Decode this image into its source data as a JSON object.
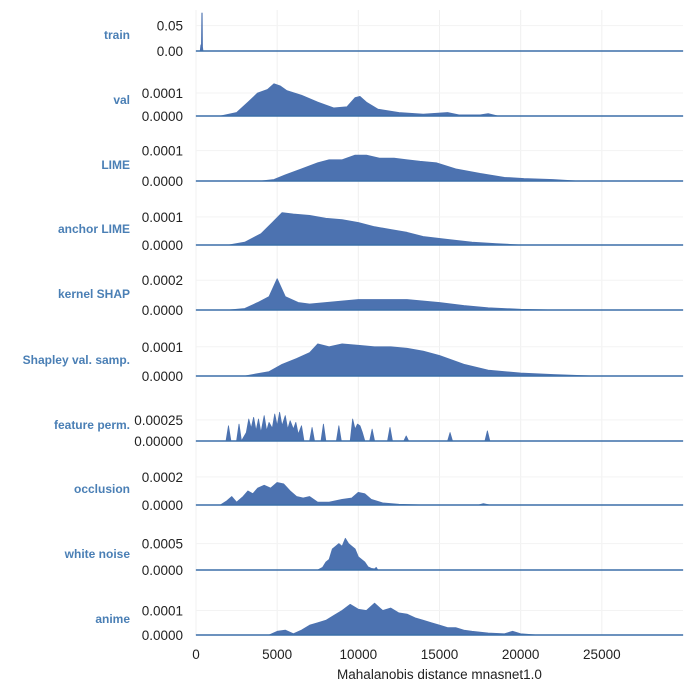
{
  "chart_data": {
    "type": "area",
    "xlabel": "Mahalanobis distance mnasnet1.0",
    "xlim": [
      0,
      30000
    ],
    "x_ticks": [
      "0",
      "5000",
      "10000",
      "15000",
      "20000",
      "25000"
    ],
    "fill_color": "#4c72b0",
    "label_color": "#4a7fb5",
    "grid": true,
    "series": [
      {
        "name": "train",
        "yticks": [
          "0.05",
          "0.00"
        ],
        "ymax": 0.075,
        "points": [
          [
            0,
            0
          ],
          [
            260,
            0
          ],
          [
            300,
            0.012
          ],
          [
            330,
            0
          ],
          [
            360,
            0.075
          ],
          [
            380,
            0.075
          ],
          [
            400,
            0.008
          ],
          [
            430,
            0
          ],
          [
            30000,
            0
          ]
        ]
      },
      {
        "name": "val",
        "yticks": [
          "0.0001",
          "0.0000"
        ],
        "ymax": 0.000165,
        "points": [
          [
            0,
            0
          ],
          [
            1500,
            0
          ],
          [
            2500,
            1.5e-05
          ],
          [
            3200,
            6e-05
          ],
          [
            3800,
            0.0001
          ],
          [
            4400,
            0.000115
          ],
          [
            4800,
            0.00014
          ],
          [
            5200,
            0.00013
          ],
          [
            5600,
            0.00011
          ],
          [
            6500,
            9e-05
          ],
          [
            7500,
            6e-05
          ],
          [
            8500,
            3.5e-05
          ],
          [
            9300,
            4e-05
          ],
          [
            9800,
            8e-05
          ],
          [
            10100,
            8.5e-05
          ],
          [
            10500,
            6e-05
          ],
          [
            11200,
            3e-05
          ],
          [
            12500,
            1.5e-05
          ],
          [
            14000,
            8e-06
          ],
          [
            15500,
            1.5e-05
          ],
          [
            16200,
            5e-06
          ],
          [
            17500,
            5e-06
          ],
          [
            18000,
            1e-05
          ],
          [
            18600,
            0
          ],
          [
            30000,
            0
          ]
        ]
      },
      {
        "name": "LIME",
        "yticks": [
          "0.0001",
          "0.0000"
        ],
        "ymax": 0.000125,
        "points": [
          [
            0,
            0
          ],
          [
            4000,
            0
          ],
          [
            4800,
            5e-06
          ],
          [
            5500,
            2e-05
          ],
          [
            6500,
            4e-05
          ],
          [
            7500,
            6e-05
          ],
          [
            8200,
            7e-05
          ],
          [
            9000,
            7e-05
          ],
          [
            9800,
            8.5e-05
          ],
          [
            10500,
            8.5e-05
          ],
          [
            11300,
            7.5e-05
          ],
          [
            12200,
            7.5e-05
          ],
          [
            13000,
            7e-05
          ],
          [
            13800,
            6.5e-05
          ],
          [
            14800,
            6e-05
          ],
          [
            16000,
            4e-05
          ],
          [
            17500,
            2.5e-05
          ],
          [
            19000,
            1.2e-05
          ],
          [
            20200,
            8e-06
          ],
          [
            22000,
            5e-06
          ],
          [
            23500,
            0
          ],
          [
            30000,
            0
          ]
        ]
      },
      {
        "name": "anchor LIME",
        "yticks": [
          "0.0001",
          "0.0000"
        ],
        "ymax": 0.000135,
        "points": [
          [
            0,
            0
          ],
          [
            2000,
            0
          ],
          [
            3000,
            1e-05
          ],
          [
            4000,
            4e-05
          ],
          [
            4700,
            8e-05
          ],
          [
            5300,
            0.000115
          ],
          [
            6000,
            0.00011
          ],
          [
            7000,
            0.000105
          ],
          [
            8000,
            9.5e-05
          ],
          [
            9000,
            9e-05
          ],
          [
            10000,
            8e-05
          ],
          [
            11000,
            6.5e-05
          ],
          [
            12000,
            5.5e-05
          ],
          [
            13000,
            4.5e-05
          ],
          [
            14000,
            3e-05
          ],
          [
            15500,
            2e-05
          ],
          [
            17000,
            1e-05
          ],
          [
            18500,
            5e-06
          ],
          [
            20000,
            0
          ],
          [
            30000,
            0
          ]
        ]
      },
      {
        "name": "kernel SHAP",
        "yticks": [
          "0.0002",
          "0.0000"
        ],
        "ymax": 0.000255,
        "points": [
          [
            0,
            0
          ],
          [
            2000,
            0
          ],
          [
            3000,
            1e-05
          ],
          [
            3800,
            5e-05
          ],
          [
            4500,
            9e-05
          ],
          [
            5000,
            0.00021
          ],
          [
            5500,
            9e-05
          ],
          [
            6300,
            5e-05
          ],
          [
            7000,
            4e-05
          ],
          [
            8000,
            5e-05
          ],
          [
            9000,
            6e-05
          ],
          [
            10000,
            7e-05
          ],
          [
            11000,
            7e-05
          ],
          [
            12000,
            7e-05
          ],
          [
            13000,
            7e-05
          ],
          [
            14000,
            6e-05
          ],
          [
            15000,
            5e-05
          ],
          [
            16500,
            3e-05
          ],
          [
            18000,
            1.5e-05
          ],
          [
            20000,
            5e-06
          ],
          [
            22000,
            0
          ],
          [
            30000,
            0
          ]
        ]
      },
      {
        "name": "Shapley val. samp.",
        "yticks": [
          "0.0001",
          "0.0000"
        ],
        "ymax": 0.00013,
        "points": [
          [
            0,
            0
          ],
          [
            3000,
            0
          ],
          [
            4500,
            1.5e-05
          ],
          [
            5300,
            4e-05
          ],
          [
            6200,
            6e-05
          ],
          [
            7000,
            8e-05
          ],
          [
            7500,
            0.00011
          ],
          [
            8200,
            0.0001
          ],
          [
            9000,
            0.00011
          ],
          [
            10000,
            0.000105
          ],
          [
            11000,
            0.0001
          ],
          [
            12000,
            0.0001
          ],
          [
            13000,
            9.5e-05
          ],
          [
            14000,
            8.5e-05
          ],
          [
            15000,
            7e-05
          ],
          [
            16500,
            4e-05
          ],
          [
            18000,
            2e-05
          ],
          [
            20000,
            1e-05
          ],
          [
            22000,
            5e-06
          ],
          [
            24500,
            0
          ],
          [
            30000,
            0
          ]
        ]
      },
      {
        "name": "feature perm.",
        "yticks": [
          "0.00025",
          "0.00000"
        ],
        "ymax": 0.00045,
        "points": [
          [
            0,
            0
          ],
          [
            1850,
            0
          ],
          [
            2000,
            0.00018
          ],
          [
            2150,
            0
          ],
          [
            2500,
            0
          ],
          [
            2650,
            0.0002
          ],
          [
            2800,
            0
          ],
          [
            3100,
            0.0001
          ],
          [
            3250,
            0.00026
          ],
          [
            3400,
            0.00015
          ],
          [
            3550,
            0.00028
          ],
          [
            3700,
            0.00012
          ],
          [
            3850,
            0.00026
          ],
          [
            4000,
            0.0001
          ],
          [
            4200,
            0.0003
          ],
          [
            4350,
            0.00012
          ],
          [
            4500,
            0.00022
          ],
          [
            4700,
            0.00015
          ],
          [
            4850,
            0.00032
          ],
          [
            5000,
            0.00018
          ],
          [
            5150,
            0.00034
          ],
          [
            5300,
            0.00018
          ],
          [
            5500,
            0.0003
          ],
          [
            5650,
            0.00014
          ],
          [
            5800,
            0.00024
          ],
          [
            6000,
            0.00014
          ],
          [
            6150,
            0.00022
          ],
          [
            6300,
            8e-05
          ],
          [
            6500,
            0.00018
          ],
          [
            6650,
            0
          ],
          [
            7000,
            0
          ],
          [
            7150,
            0.00016
          ],
          [
            7300,
            0
          ],
          [
            7700,
            0
          ],
          [
            7850,
            0.0002
          ],
          [
            8000,
            0
          ],
          [
            8650,
            0
          ],
          [
            8800,
            0.00018
          ],
          [
            8950,
            0
          ],
          [
            9500,
            0
          ],
          [
            9650,
            0.00026
          ],
          [
            9800,
            0.00014
          ],
          [
            9950,
            0.0002
          ],
          [
            10100,
            0.00018
          ],
          [
            10250,
            0.0001
          ],
          [
            10400,
            0
          ],
          [
            10700,
            0
          ],
          [
            10850,
            0.00014
          ],
          [
            11000,
            0
          ],
          [
            11800,
            0
          ],
          [
            11950,
            0.00016
          ],
          [
            12100,
            0
          ],
          [
            12800,
            0
          ],
          [
            12950,
            6e-05
          ],
          [
            13100,
            0
          ],
          [
            15500,
            0
          ],
          [
            15650,
            0.0001
          ],
          [
            15800,
            0
          ],
          [
            17800,
            0
          ],
          [
            17950,
            0.00012
          ],
          [
            18100,
            0
          ],
          [
            30000,
            0
          ]
        ]
      },
      {
        "name": "occlusion",
        "yticks": [
          "0.0002",
          "0.0000"
        ],
        "ymax": 0.00027,
        "points": [
          [
            0,
            0
          ],
          [
            1500,
            0
          ],
          [
            1900,
            3e-05
          ],
          [
            2200,
            6e-05
          ],
          [
            2500,
            2e-05
          ],
          [
            2900,
            6e-05
          ],
          [
            3200,
            0.0001
          ],
          [
            3500,
            8e-05
          ],
          [
            3800,
            0.00012
          ],
          [
            4200,
            0.00014
          ],
          [
            4600,
            0.00012
          ],
          [
            5000,
            0.00016
          ],
          [
            5400,
            0.00015
          ],
          [
            5800,
            0.0001
          ],
          [
            6200,
            6e-05
          ],
          [
            6600,
            5e-05
          ],
          [
            7000,
            6e-05
          ],
          [
            7500,
            2e-05
          ],
          [
            8200,
            2e-05
          ],
          [
            9000,
            4e-05
          ],
          [
            9600,
            5e-05
          ],
          [
            10000,
            9e-05
          ],
          [
            10400,
            8e-05
          ],
          [
            10800,
            4e-05
          ],
          [
            11500,
            1.5e-05
          ],
          [
            12500,
            5e-06
          ],
          [
            14000,
            0
          ],
          [
            17400,
            0
          ],
          [
            17700,
            1e-05
          ],
          [
            18100,
            0
          ],
          [
            30000,
            0
          ]
        ]
      },
      {
        "name": "white noise",
        "yticks": [
          "0.0005",
          "0.0000"
        ],
        "ymax": 0.00072,
        "points": [
          [
            0,
            0
          ],
          [
            7500,
            0
          ],
          [
            7800,
            5e-05
          ],
          [
            8000,
            0.00015
          ],
          [
            8200,
            0.0002
          ],
          [
            8400,
            0.0004
          ],
          [
            8600,
            0.00045
          ],
          [
            8800,
            0.0005
          ],
          [
            9000,
            0.00045
          ],
          [
            9200,
            0.0006
          ],
          [
            9400,
            0.0005
          ],
          [
            9600,
            0.00045
          ],
          [
            9800,
            0.0004
          ],
          [
            10000,
            0.00025
          ],
          [
            10200,
            0.0002
          ],
          [
            10400,
            0.00015
          ],
          [
            10600,
            6e-05
          ],
          [
            10800,
            3e-05
          ],
          [
            11000,
            2e-05
          ],
          [
            11100,
            5e-05
          ],
          [
            11200,
            0
          ],
          [
            30000,
            0
          ]
        ]
      },
      {
        "name": "anime",
        "yticks": [
          "0.0001",
          "0.0000"
        ],
        "ymax": 0.000155,
        "points": [
          [
            0,
            0
          ],
          [
            4500,
            0
          ],
          [
            5000,
            1.5e-05
          ],
          [
            5500,
            2e-05
          ],
          [
            6000,
            5e-06
          ],
          [
            6500,
            2e-05
          ],
          [
            7000,
            4e-05
          ],
          [
            7500,
            5e-05
          ],
          [
            8000,
            6e-05
          ],
          [
            8500,
            8e-05
          ],
          [
            9000,
            0.0001
          ],
          [
            9500,
            0.000125
          ],
          [
            10000,
            0.000105
          ],
          [
            10500,
            0.0001
          ],
          [
            11000,
            0.00013
          ],
          [
            11500,
            0.0001
          ],
          [
            12000,
            0.00011
          ],
          [
            12500,
            9e-05
          ],
          [
            13000,
            8.5e-05
          ],
          [
            13500,
            7e-05
          ],
          [
            14000,
            6e-05
          ],
          [
            14500,
            5e-05
          ],
          [
            15000,
            4e-05
          ],
          [
            15500,
            3e-05
          ],
          [
            16000,
            3e-05
          ],
          [
            16500,
            2e-05
          ],
          [
            17000,
            1.5e-05
          ],
          [
            18000,
            8e-06
          ],
          [
            19000,
            5e-06
          ],
          [
            19500,
            1.5e-05
          ],
          [
            20000,
            5e-06
          ],
          [
            21000,
            0
          ],
          [
            30000,
            0
          ]
        ]
      }
    ]
  }
}
